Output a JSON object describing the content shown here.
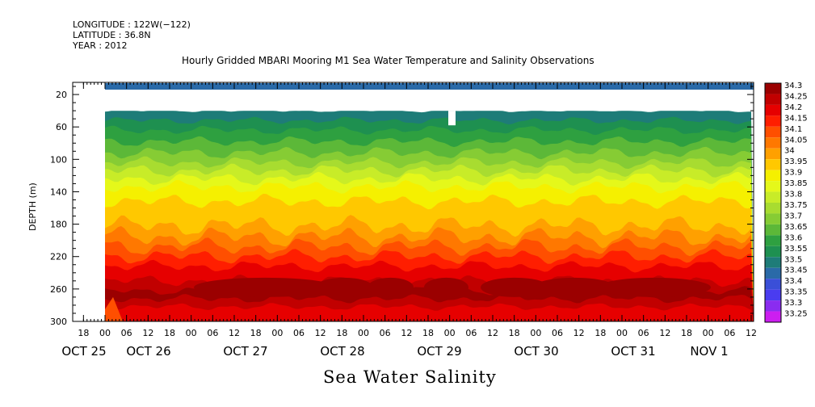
{
  "header": {
    "longitude": "LONGITUDE : 122W(−122)",
    "latitude": "LATITUDE : 36.8N",
    "year": "YEAR : 2012"
  },
  "chart_data": {
    "type": "heatmap",
    "title": "Hourly Gridded MBARI Mooring M1 Sea Water Temperature and Salinity Observations",
    "xtitle": "Sea Water Salinity",
    "ylabel": "DEPTH (m)",
    "yticks": [
      20,
      60,
      100,
      140,
      180,
      220,
      260,
      300
    ],
    "ylim": [
      300,
      5
    ],
    "x_range_hours": [
      "OCT 25 12:00",
      "NOV 1 18:00"
    ],
    "hour_tick_labels": [
      "18",
      "00",
      "06",
      "12",
      "18",
      "00",
      "06",
      "12",
      "18",
      "00",
      "06",
      "12",
      "18",
      "00",
      "06",
      "12",
      "18",
      "00",
      "06",
      "12",
      "18",
      "00",
      "06",
      "12",
      "18",
      "00",
      "06",
      "12",
      "18",
      "00",
      "06",
      "12"
    ],
    "day_labels": [
      "OCT 25",
      "OCT 26",
      "OCT 27",
      "OCT 28",
      "OCT 29",
      "OCT 30",
      "OCT 31",
      "NOV  1"
    ],
    "colorbar_levels": [
      "34.3",
      "34.25",
      "34.2",
      "34.15",
      "34.1",
      "34.05",
      "34",
      "33.95",
      "33.9",
      "33.85",
      "33.8",
      "33.75",
      "33.7",
      "33.65",
      "33.6",
      "33.55",
      "33.5",
      "33.45",
      "33.4",
      "33.35",
      "33.3",
      "33.25"
    ],
    "colorbar_colors": [
      "#9b0000",
      "#c10000",
      "#e60000",
      "#ff1e00",
      "#ff4f00",
      "#ff7800",
      "#ffa000",
      "#ffc800",
      "#f5f000",
      "#e5f81a",
      "#c8ec28",
      "#a8dc30",
      "#86cc34",
      "#5cb838",
      "#2ea040",
      "#1e9050",
      "#1e7c78",
      "#2a6aa8",
      "#3a4fd8",
      "#4a3cf0",
      "#8a2cf0",
      "#cc1ef0"
    ],
    "series": [
      {
        "depth_m": [
          10
        ],
        "value": "33.45"
      },
      {
        "depth_m": [
          40,
          70
        ],
        "value": "33.5-33.6"
      },
      {
        "depth_m": [
          100,
          130
        ],
        "value": "33.7-33.85"
      },
      {
        "depth_m": [
          150,
          190
        ],
        "value": "33.9-33.95"
      },
      {
        "depth_m": [
          200,
          240
        ],
        "value": "34.0-34.2"
      },
      {
        "depth_m": [
          240,
          280
        ],
        "value": "34.25-34.3"
      },
      {
        "depth_m": [
          280,
          300
        ],
        "value": "34.2"
      }
    ]
  }
}
